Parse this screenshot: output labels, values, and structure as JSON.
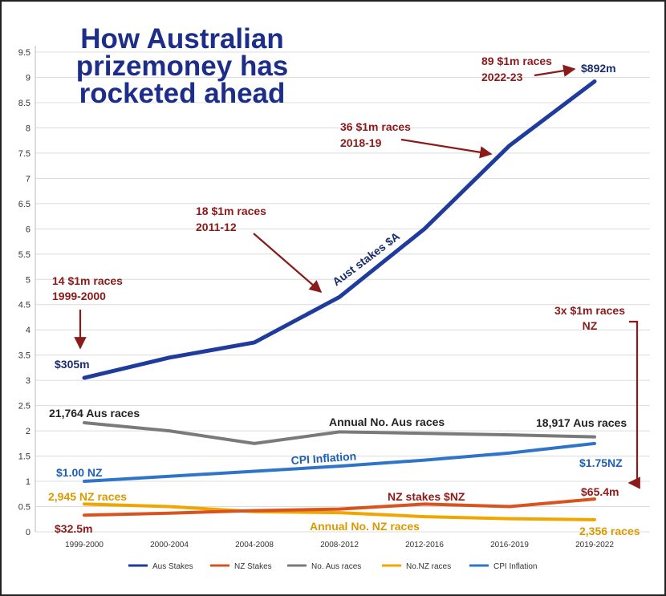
{
  "chart_data": {
    "type": "line",
    "title_lines": [
      "How Australian",
      "prizemoney has",
      "rocketed ahead"
    ],
    "categories": [
      "1999-2000",
      "2000-2004",
      "2004-2008",
      "2008-2012",
      "2012-2016",
      "2016-2019",
      "2019-2022"
    ],
    "y_ticks": [
      "0",
      "0.5",
      "1",
      "1.5",
      "2",
      "2.5",
      "3",
      "3.5",
      "4",
      "4.5",
      "5",
      "5.5",
      "6",
      "6.5",
      "7",
      "7.5",
      "8",
      "8.5",
      "9",
      "9.5"
    ],
    "ylim": [
      0,
      9.5
    ],
    "grid": "horizontal",
    "legend_position": "bottom",
    "colors": {
      "aus_stakes": "#1f3c9c",
      "nz_stakes": "#d9531e",
      "aus_races": "#7a7a7a",
      "nz_races": "#f0a500",
      "cpi": "#2f74c9",
      "annotation": "#8b1a1a",
      "grid": "#dcdcdc"
    },
    "series": [
      {
        "name": "Aus Stakes",
        "values": [
          3.05,
          3.45,
          3.75,
          4.65,
          6.0,
          7.65,
          8.92
        ]
      },
      {
        "name": "NZ Stakes",
        "values": [
          0.33,
          0.37,
          0.42,
          0.45,
          0.55,
          0.5,
          0.65
        ]
      },
      {
        "name": "No. Aus races",
        "values": [
          2.16,
          2.0,
          1.75,
          1.98,
          1.95,
          1.92,
          1.88
        ]
      },
      {
        "name": "No.NZ races",
        "values": [
          0.55,
          0.5,
          0.4,
          0.38,
          0.3,
          0.26,
          0.24
        ]
      },
      {
        "name": "CPI Inflation",
        "values": [
          1.0,
          1.1,
          1.2,
          1.3,
          1.42,
          1.56,
          1.75
        ]
      }
    ],
    "annotations": {
      "aus_start_value": "$305m",
      "aus_end_value": "$892m",
      "nz_start_value": "$32.5m",
      "nz_end_value": "$65.4m",
      "cpi_start": "$1.00 NZ",
      "cpi_end": "$1.75NZ",
      "aus_races_start": "21,764 Aus races",
      "aus_races_end": "18,917 Aus races",
      "nz_races_start": "2,945 NZ races",
      "nz_races_end": "2,356 races",
      "aus_stakes_line_label": "Aust stakes $A",
      "cpi_line_label": "CPI Inflation",
      "aus_races_line_label": "Annual No. Aus races",
      "nz_stakes_line_label": "NZ stakes $NZ",
      "nz_races_line_label": "Annual No. NZ races",
      "milestone_1999": [
        "14 $1m races",
        "1999-2000"
      ],
      "milestone_2011": [
        "18 $1m races",
        "2011-12"
      ],
      "milestone_2018": [
        "36 $1m races",
        "2018-19"
      ],
      "milestone_2022": [
        "89 $1m races",
        "2022-23"
      ],
      "milestone_nz": [
        "3x $1m races",
        "NZ"
      ]
    }
  }
}
